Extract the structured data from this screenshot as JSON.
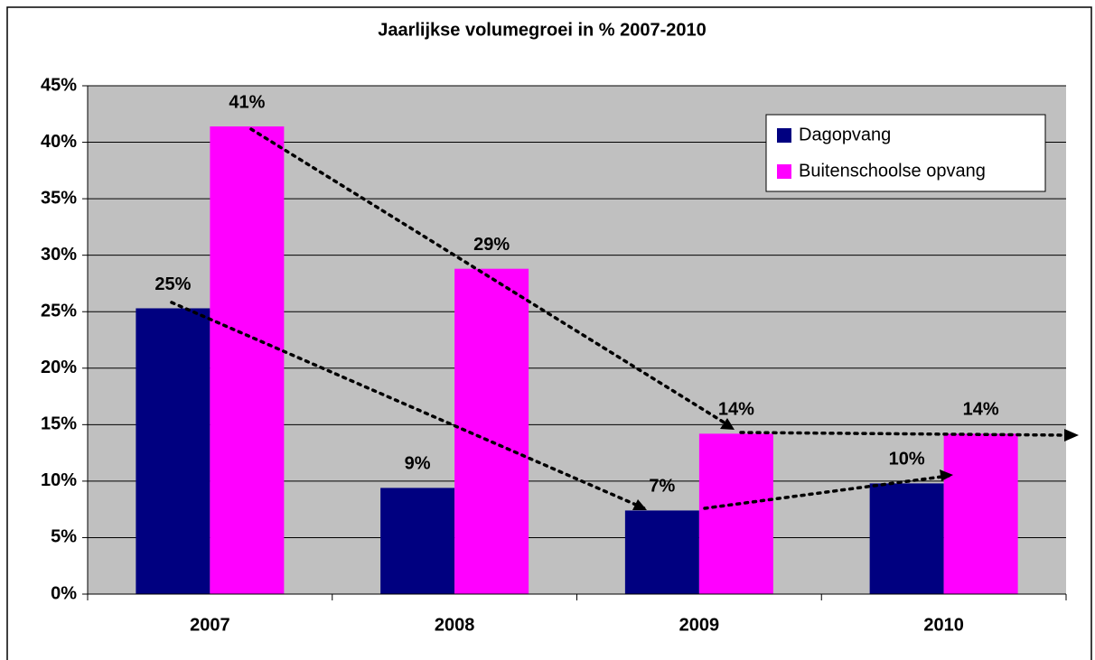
{
  "chart_data": {
    "type": "bar",
    "title": "Jaarlijkse volumegroei in % 2007-2010",
    "categories": [
      "2007",
      "2008",
      "2009",
      "2010"
    ],
    "series": [
      {
        "name": "Dagopvang",
        "color": "#000080",
        "values": [
          25.3,
          9.4,
          7.4,
          9.8
        ],
        "value_labels": [
          "25%",
          "9%",
          "7%",
          "10%"
        ]
      },
      {
        "name": "Buitenschoolse opvang",
        "color": "#ff00ff",
        "values": [
          41.4,
          28.8,
          14.2,
          14.2
        ],
        "value_labels": [
          "41%",
          "29%",
          "14%",
          "14%"
        ]
      }
    ],
    "ylim": [
      0,
      45
    ],
    "yticks": [
      {
        "value": 0,
        "label": "0%"
      },
      {
        "value": 5,
        "label": "5%"
      },
      {
        "value": 10,
        "label": "10%"
      },
      {
        "value": 15,
        "label": "15%"
      },
      {
        "value": 20,
        "label": "20%"
      },
      {
        "value": 25,
        "label": "25%"
      },
      {
        "value": 30,
        "label": "30%"
      },
      {
        "value": 35,
        "label": "35%"
      },
      {
        "value": 40,
        "label": "40%"
      },
      {
        "value": 45,
        "label": "45%"
      }
    ],
    "grid": true,
    "legend": "upper right"
  }
}
